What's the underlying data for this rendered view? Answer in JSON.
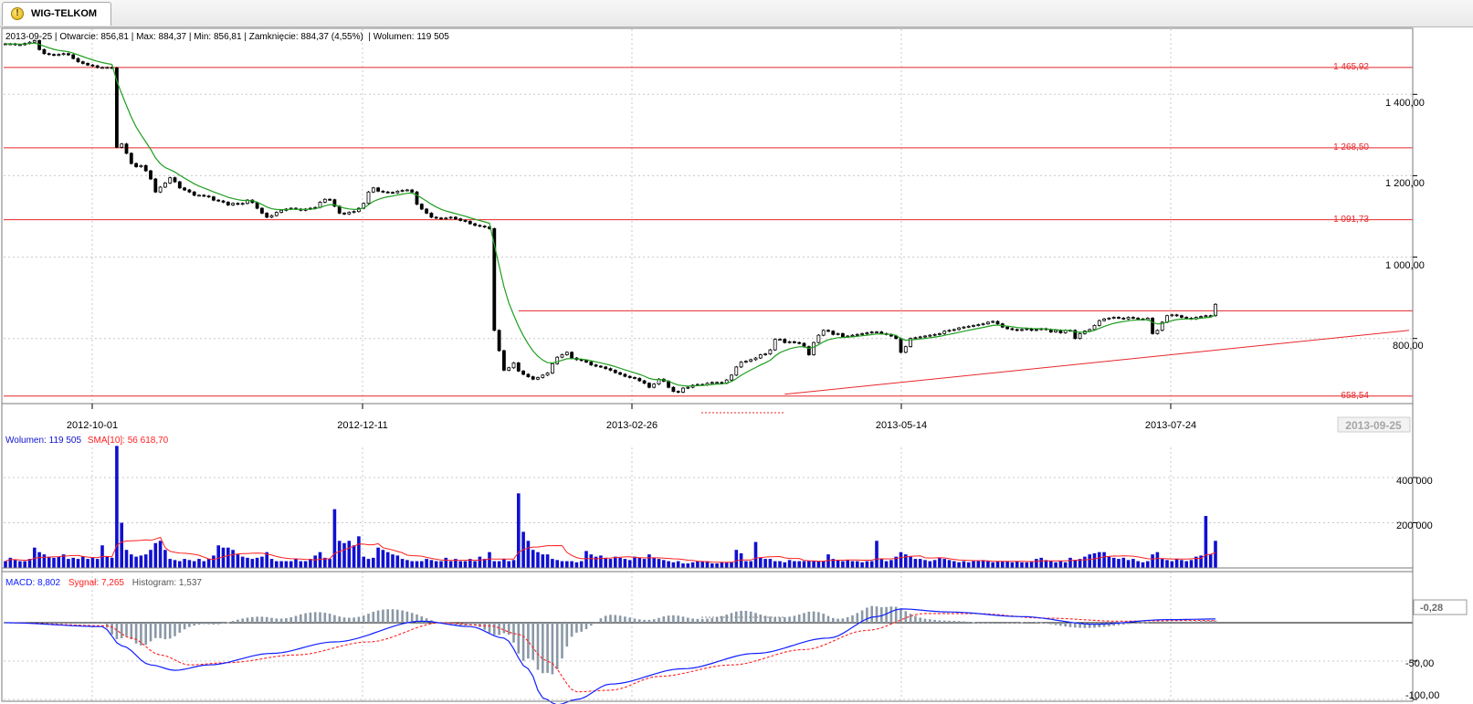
{
  "window": {
    "tab_title": "WIG-TELKOM",
    "tab_icon": "exclamation-warning-icon"
  },
  "colors": {
    "price_candles": "#000000",
    "sma_line": "#1f9e1f",
    "support_lines": "#e8262a",
    "volume_bars": "#1010d0",
    "volume_sma": "#ff2020",
    "macd": "#1020ff",
    "signal": "#ff2020",
    "histogram": "#8a98a6",
    "grid": "#c8c8c8"
  },
  "price_panel": {
    "info": {
      "date": "2013-09-25",
      "open_label": "Otwarcie:",
      "open": "856,81",
      "max_label": "Max:",
      "max": "884,37",
      "min_label": "Min:",
      "min": "856,81",
      "close_label": "Zamknięcie:",
      "close": "884,37 (4,55%)",
      "volume_label": "Wolumen:",
      "volume": "119 505"
    },
    "level_labels": [
      "1 465,92",
      "1 268,50",
      "1 091,73",
      "658,54"
    ],
    "y_ticks": [
      "1 400,00",
      "1 200,00",
      "1 000,00",
      "800,00"
    ],
    "x_ticks": [
      "2012-10-01",
      "2012-12-11",
      "2013-02-26",
      "2013-05-14",
      "2013-07-24"
    ],
    "x_current": "2013-09-25"
  },
  "volume_panel": {
    "label": "Wolumen:",
    "value": "119 505",
    "sma_label": "SMA[10]:",
    "sma_value": "56 618,70",
    "y_ticks": [
      "400 000",
      "200 000"
    ]
  },
  "macd_panel": {
    "macd_label": "MACD:",
    "macd_value": "8,802",
    "signal_label": "Sygnał:",
    "signal_value": "7,265",
    "hist_label": "Histogram:",
    "hist_value": "1,537",
    "y_ticks": [
      "-50,00",
      "-100,00"
    ],
    "current_marker": "-0,28"
  },
  "chart_data": {
    "type": "line",
    "series": [
      {
        "name": "WIG-TELKOM",
        "values": [
          1524,
          1524,
          1522,
          1522,
          1525,
          1528,
          1532,
          1510,
          1500,
          1498,
          1496,
          1498,
          1500,
          1497,
          1488,
          1480,
          1476,
          1472,
          1470,
          1466,
          1466,
          1466,
          1465,
          1270,
          1278,
          1255,
          1230,
          1222,
          1225,
          1212,
          1192,
          1160,
          1172,
          1182,
          1195,
          1185,
          1170,
          1165,
          1160,
          1152,
          1152,
          1150,
          1148,
          1140,
          1138,
          1135,
          1128,
          1132,
          1130,
          1132,
          1140,
          1134,
          1120,
          1108,
          1098,
          1102,
          1110,
          1115,
          1118,
          1120,
          1118,
          1115,
          1118,
          1120,
          1122,
          1135,
          1142,
          1141,
          1125,
          1108,
          1106,
          1110,
          1112,
          1120,
          1132,
          1160,
          1170,
          1162,
          1160,
          1159,
          1158,
          1162,
          1164,
          1165,
          1160,
          1130,
          1118,
          1108,
          1098,
          1096,
          1095,
          1096,
          1098,
          1094,
          1090,
          1088,
          1082,
          1078,
          1076,
          1074,
          1070,
          820,
          770,
          722,
          728,
          740,
          720,
          712,
          706,
          700,
          704,
          710,
          715,
          738,
          754,
          760,
          766,
          752,
          748,
          746,
          742,
          735,
          732,
          730,
          726,
          722,
          716,
          712,
          707,
          704,
          702,
          696,
          690,
          680,
          688,
          700,
          695,
          680,
          670,
          668,
          678,
          680,
          685,
          687,
          686,
          690,
          692,
          692,
          690,
          698,
          710,
          730,
          742,
          744,
          748,
          752,
          760,
          762,
          772,
          798,
          798,
          790,
          792,
          790,
          788,
          780,
          760,
          790,
          808,
          820,
          818,
          810,
          812,
          804,
          806,
          808,
          810,
          812,
          814,
          816,
          816,
          812,
          810,
          806,
          800,
          766,
          780,
          800,
          802,
          804,
          806,
          808,
          810,
          812,
          818,
          820,
          822,
          826,
          828,
          830,
          832,
          834,
          836,
          840,
          842,
          836,
          828,
          824,
          822,
          820,
          822,
          824,
          820,
          822,
          824,
          822,
          816,
          820,
          814,
          820,
          820,
          800,
          812,
          818,
          822,
          832,
          844,
          848,
          850,
          852,
          850,
          848,
          852,
          850,
          848,
          846,
          850,
          812,
          820,
          840,
          856,
          858,
          856,
          852,
          850,
          848,
          852,
          854,
          856,
          856,
          884
        ]
      },
      {
        "name": "Wolumen",
        "values": [
          30000,
          45000,
          35000,
          30000,
          30000,
          40000,
          90000,
          70000,
          60000,
          50000,
          45000,
          50000,
          60000,
          40000,
          45000,
          40000,
          50000,
          40000,
          45000,
          40000,
          100000,
          50000,
          45000,
          540000,
          200000,
          80000,
          60000,
          50000,
          55000,
          60000,
          80000,
          110000,
          120000,
          80000,
          40000,
          35000,
          30000,
          40000,
          35000,
          30000,
          40000,
          30000,
          40000,
          55000,
          100000,
          90000,
          90000,
          80000,
          60000,
          50000,
          45000,
          40000,
          45000,
          50000,
          70000,
          40000,
          30000,
          30000,
          30000,
          30000,
          40000,
          30000,
          30000,
          40000,
          55000,
          70000,
          45000,
          40000,
          260000,
          120000,
          110000,
          120000,
          100000,
          140000,
          50000,
          40000,
          45000,
          90000,
          80000,
          70000,
          60000,
          55000,
          40000,
          35000,
          30000,
          30000,
          30000,
          40000,
          35000,
          30000,
          30000,
          45000,
          30000,
          40000,
          30000,
          30000,
          40000,
          30000,
          50000,
          40000,
          70000,
          30000,
          30000,
          40000,
          30000,
          35000,
          330000,
          160000,
          120000,
          80000,
          70000,
          60000,
          60000,
          40000,
          35000,
          30000,
          30000,
          30000,
          25000,
          30000,
          75000,
          60000,
          50000,
          55000,
          45000,
          40000,
          50000,
          45000,
          40000,
          35000,
          50000,
          45000,
          40000,
          60000,
          45000,
          40000,
          35000,
          30000,
          25000,
          30000,
          20000,
          20000,
          25000,
          30000,
          30000,
          30000,
          20000,
          20000,
          25000,
          25000,
          25000,
          80000,
          65000,
          30000,
          30000,
          115000,
          45000,
          40000,
          40000,
          30000,
          30000,
          25000,
          35000,
          30000,
          30000,
          30000,
          30000,
          30000,
          30000,
          30000,
          60000,
          40000,
          35000,
          30000,
          35000,
          30000,
          30000,
          25000,
          30000,
          30000,
          120000,
          40000,
          30000,
          35000,
          50000,
          70000,
          60000,
          50000,
          40000,
          40000,
          35000,
          30000,
          35000,
          45000,
          40000,
          35000,
          30000,
          25000,
          30000,
          25000,
          30000,
          30000,
          35000,
          30000,
          25000,
          30000,
          30000,
          30000,
          25000,
          30000,
          25000,
          25000,
          30000,
          40000,
          45000,
          35000,
          30000,
          25000,
          30000,
          25000,
          45000,
          35000,
          40000,
          50000,
          60000,
          65000,
          70000,
          70000,
          50000,
          45000,
          40000,
          45000,
          35000,
          40000,
          30000,
          25000,
          30000,
          60000,
          70000,
          40000,
          35000,
          30000,
          40000,
          35000,
          30000,
          35000,
          50000,
          55000,
          230000,
          60000,
          120000
        ]
      }
    ],
    "macd": {
      "macd_knots": [
        [
          0,
          0
        ],
        [
          20,
          -5
        ],
        [
          24,
          -30
        ],
        [
          30,
          -55
        ],
        [
          35,
          -62
        ],
        [
          42,
          -55
        ],
        [
          55,
          -40
        ],
        [
          68,
          -25
        ],
        [
          86,
          2
        ],
        [
          96,
          -5
        ],
        [
          103,
          -20
        ],
        [
          108,
          -60
        ],
        [
          111,
          -98
        ],
        [
          114,
          -107
        ],
        [
          118,
          -100
        ],
        [
          125,
          -80
        ],
        [
          140,
          -60
        ],
        [
          155,
          -40
        ],
        [
          170,
          -20
        ],
        [
          180,
          8
        ],
        [
          185,
          18
        ],
        [
          195,
          14
        ],
        [
          210,
          8
        ],
        [
          225,
          -2
        ],
        [
          240,
          4
        ],
        [
          252,
          5
        ],
        [
          262,
          -5
        ],
        [
          276,
          2
        ],
        [
          287,
          8
        ],
        [
          290,
          8
        ]
      ],
      "signal_knots": [
        [
          0,
          0
        ],
        [
          21,
          -4
        ],
        [
          26,
          -20
        ],
        [
          32,
          -42
        ],
        [
          38,
          -55
        ],
        [
          46,
          -52
        ],
        [
          60,
          -42
        ],
        [
          75,
          -25
        ],
        [
          90,
          0
        ],
        [
          100,
          -4
        ],
        [
          106,
          -15
        ],
        [
          112,
          -50
        ],
        [
          118,
          -90
        ],
        [
          125,
          -88
        ],
        [
          135,
          -70
        ],
        [
          150,
          -55
        ],
        [
          165,
          -35
        ],
        [
          178,
          -10
        ],
        [
          190,
          12
        ],
        [
          200,
          12
        ],
        [
          215,
          6
        ],
        [
          230,
          2
        ],
        [
          245,
          3
        ],
        [
          258,
          2
        ],
        [
          270,
          -2
        ],
        [
          285,
          6
        ],
        [
          290,
          7
        ]
      ]
    },
    "price_axis": {
      "min": 640,
      "max": 1560
    },
    "levels": [
      1465.92,
      1268.5,
      1091.73,
      658.54
    ],
    "resistance_line": {
      "start_index": 106,
      "value": 868
    },
    "trend_line": {
      "start": {
        "index": 161,
        "value": 663
      },
      "end": {
        "index": 290,
        "value": 820
      }
    },
    "volume_sma_period": 10,
    "grid": true,
    "legend_position": "top-left"
  }
}
